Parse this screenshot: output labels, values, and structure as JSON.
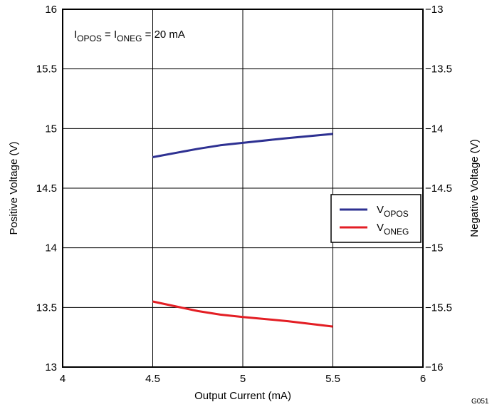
{
  "chart_data": {
    "type": "line",
    "x_label": "Output Current (mA)",
    "y_label_left": "Positive Voltage (V)",
    "y_label_right": "Negative Voltage (V)",
    "xlim": [
      4,
      6
    ],
    "ylim_left": [
      13,
      16
    ],
    "ylim_right": [
      -16,
      -13
    ],
    "x_ticks": [
      "4",
      "4.5",
      "5",
      "5.5",
      "6"
    ],
    "y_ticks_left": [
      "13",
      "13.5",
      "14",
      "14.5",
      "15",
      "15.5",
      "16"
    ],
    "y_ticks_right": [
      "−16",
      "−15.5",
      "−15",
      "−14.5",
      "−14",
      "−13.5",
      "−13"
    ],
    "grid": true,
    "legend_position": "right",
    "annotation": {
      "i1": "I",
      "s1": "OPOS",
      "eq1": " = ",
      "i2": "I",
      "s2": "ONEG",
      "value": " = 20 mA"
    },
    "figure_id": "G051",
    "series": [
      {
        "name": "VOPOS",
        "legend_main": "V",
        "legend_sub": "OPOS",
        "axis": "left",
        "color": "#2e3192",
        "x": [
          4.5,
          4.75,
          4.875,
          5.0,
          5.25,
          5.5
        ],
        "y": [
          14.76,
          14.83,
          14.86,
          14.88,
          14.92,
          14.955
        ]
      },
      {
        "name": "VONEG",
        "legend_main": "V",
        "legend_sub": "ONEG",
        "axis": "left",
        "color": "#e31e24",
        "x": [
          4.5,
          4.75,
          4.875,
          5.0,
          5.25,
          5.5
        ],
        "y": [
          13.55,
          13.47,
          13.44,
          13.42,
          13.385,
          13.34
        ]
      }
    ]
  }
}
